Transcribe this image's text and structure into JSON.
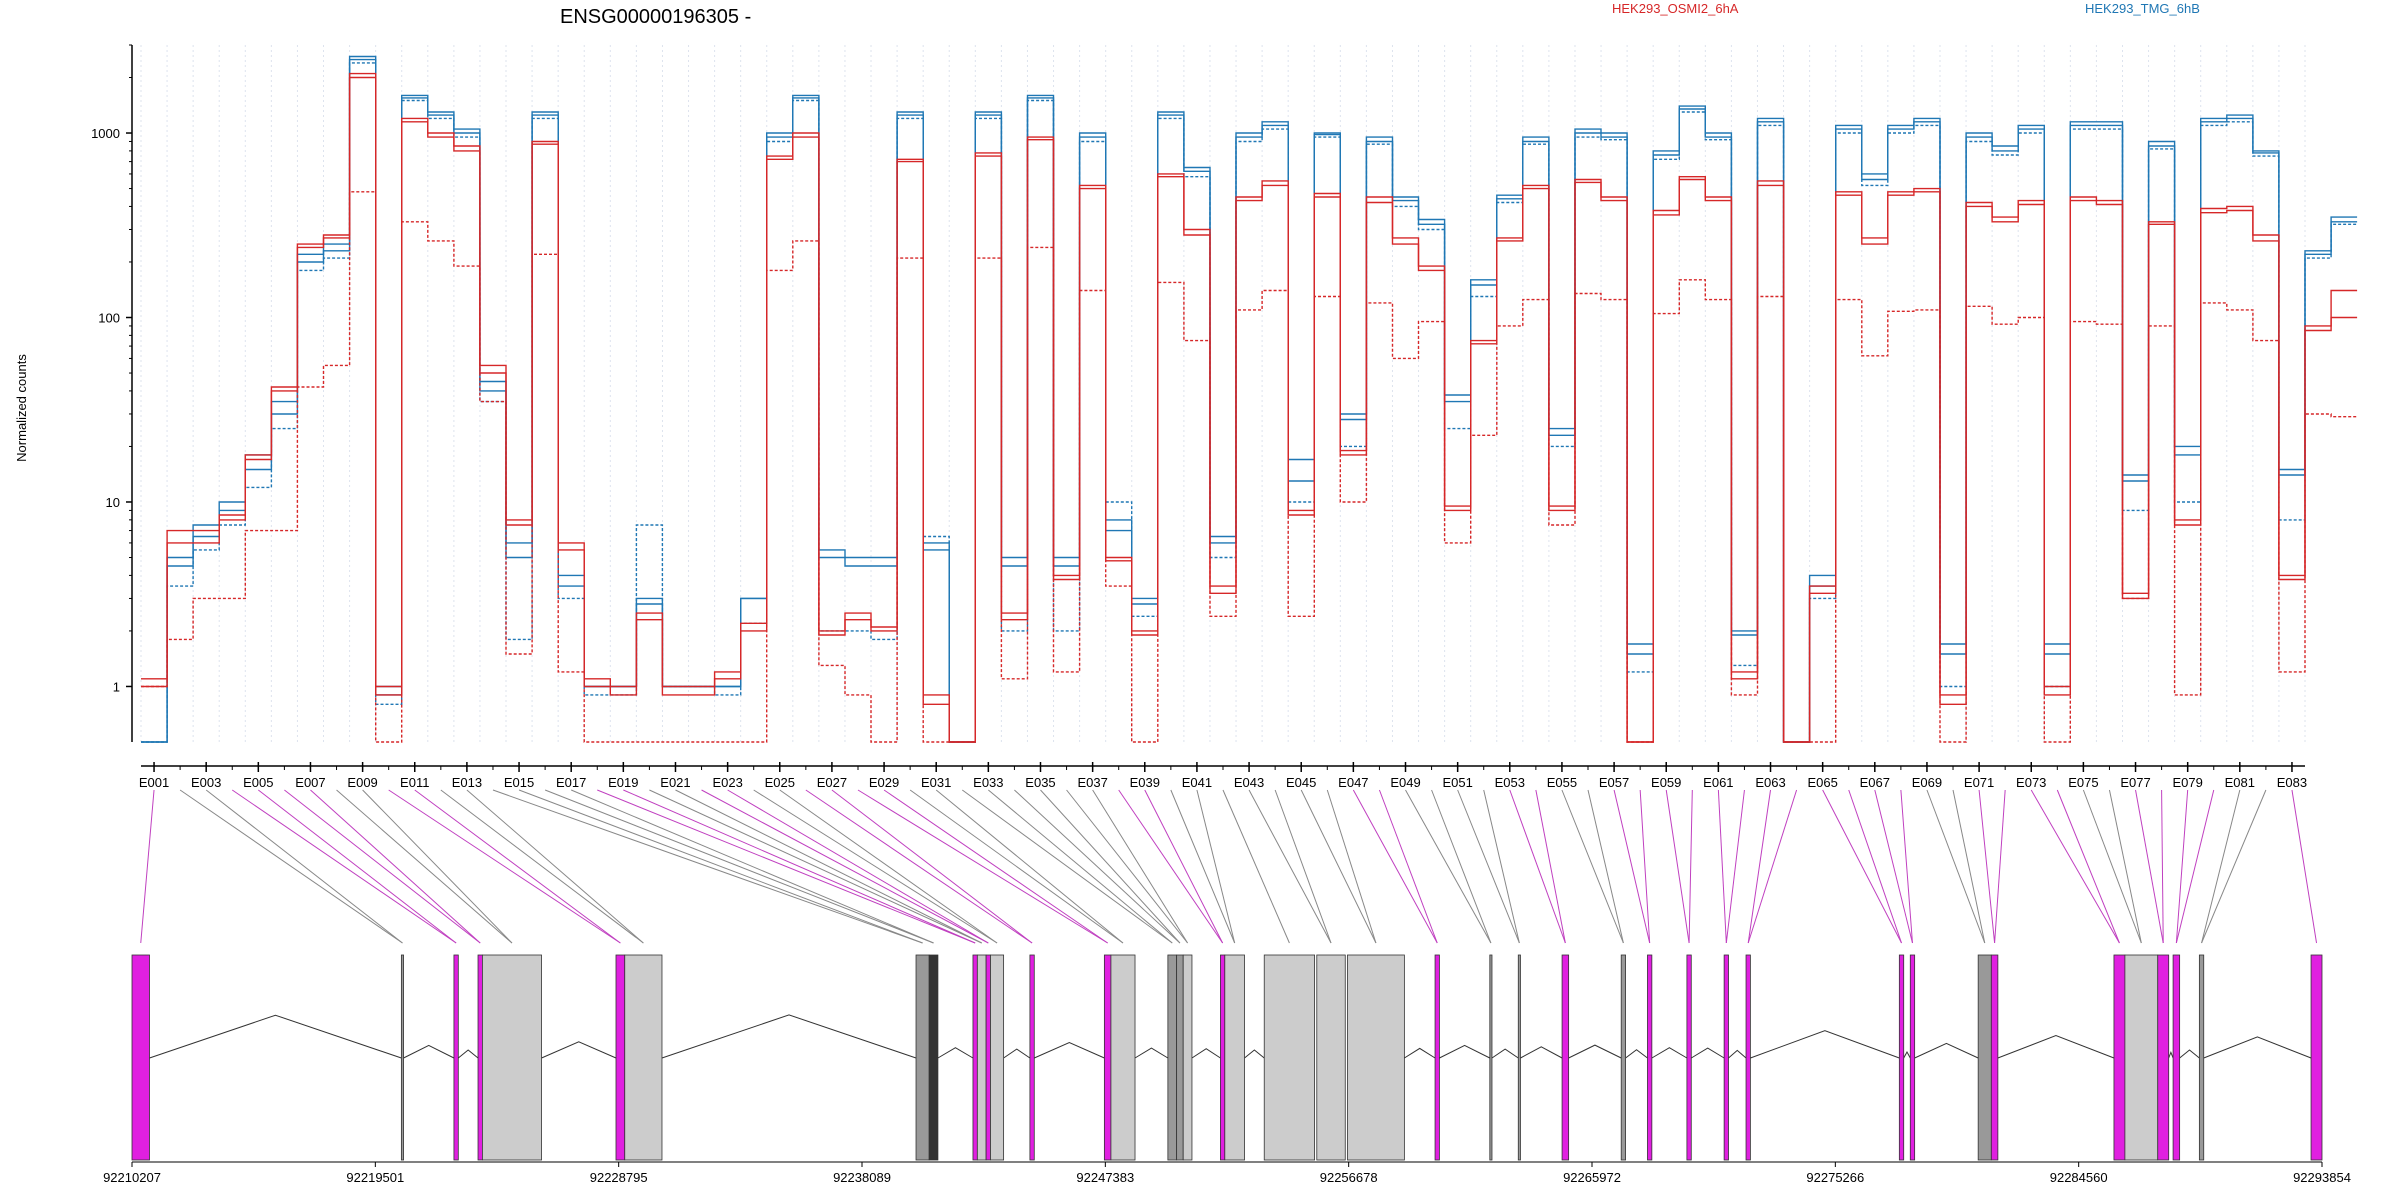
{
  "chart_data": {
    "type": "line",
    "title": "ENSG00000196305 -",
    "ylabel": "Normalized counts",
    "yscale": "log",
    "ylim": [
      0.5,
      3000
    ],
    "y_ticks": [
      1,
      10,
      100,
      1000
    ],
    "y_tick_labels": [
      "1",
      "10",
      "100",
      "1000"
    ],
    "exon_labels": [
      "E001",
      "E003",
      "E005",
      "E007",
      "E009",
      "E011",
      "E013",
      "E015",
      "E017",
      "E019",
      "E021",
      "E023",
      "E025",
      "E027",
      "E029",
      "E031",
      "E033",
      "E035",
      "E037",
      "E039",
      "E041",
      "E043",
      "E045",
      "E047",
      "E049",
      "E051",
      "E053",
      "E055",
      "E057",
      "E059",
      "E061",
      "E063",
      "E065",
      "E067",
      "E069",
      "E071",
      "E073",
      "E075",
      "E077",
      "E079",
      "E081",
      "E083"
    ],
    "exon_count": 83,
    "legend": [
      {
        "name": "HEK293_OSMI2_6hA",
        "color": "#d62728"
      },
      {
        "name": "HEK293_TMG_6hB",
        "color": "#1f77b4"
      }
    ],
    "colors": {
      "red": "#d62728",
      "blue": "#1f77b4",
      "magenta": "#e020e0",
      "gray_exon": "#cccccc"
    },
    "series": [
      {
        "group": "HEK293_TMG_6hB",
        "dashed": false,
        "values": [
          0.5,
          5,
          7.5,
          10,
          18,
          35,
          220,
          250,
          2600,
          1,
          1600,
          1300,
          1050,
          45,
          6,
          1300,
          4,
          1,
          1,
          3,
          1,
          1,
          1,
          3,
          1000,
          1600,
          5.5,
          5,
          5,
          1300,
          6,
          0.5,
          1300,
          5,
          1600,
          5,
          1000,
          8,
          3,
          1300,
          650,
          6.5,
          1000,
          1150,
          17,
          1000,
          30,
          950,
          450,
          340,
          38,
          160,
          460,
          950,
          25,
          1050,
          1000,
          1.7,
          800,
          1400,
          1000,
          2,
          1200,
          0.5,
          4,
          1100,
          600,
          1100,
          1200,
          1.7,
          1000,
          850,
          1100,
          1.7,
          1150,
          1150,
          14,
          900,
          20,
          1200,
          1250,
          800,
          15,
          230,
          350
        ]
      },
      {
        "group": "HEK293_TMG_6hB",
        "dashed": false,
        "values": [
          0.5,
          4.5,
          6.5,
          9,
          15,
          30,
          200,
          230,
          2500,
          0.9,
          1550,
          1250,
          1000,
          40,
          5,
          1250,
          3.5,
          1,
          1,
          2.8,
          1,
          1,
          1,
          3,
          950,
          1550,
          5,
          4.5,
          4.5,
          1250,
          5.5,
          0.5,
          1250,
          4.5,
          1550,
          4.5,
          950,
          7,
          2.8,
          1250,
          620,
          6,
          950,
          1100,
          13,
          980,
          28,
          900,
          430,
          320,
          35,
          150,
          440,
          900,
          23,
          1000,
          950,
          1.5,
          760,
          1350,
          950,
          1.9,
          1150,
          0.5,
          3.5,
          1050,
          560,
          1050,
          1150,
          1.5,
          950,
          800,
          1050,
          1.5,
          1100,
          1100,
          13,
          850,
          18,
          1150,
          1200,
          780,
          14,
          220,
          330
        ]
      },
      {
        "group": "HEK293_TMG_6hB",
        "dashed": true,
        "values": [
          0.5,
          3.5,
          5.5,
          7.5,
          12,
          25,
          180,
          210,
          2400,
          0.8,
          1500,
          1200,
          950,
          35,
          1.8,
          1200,
          3,
          0.9,
          0.9,
          7.5,
          1,
          1,
          0.9,
          2.2,
          900,
          1500,
          2,
          2,
          1.8,
          1200,
          6.5,
          0.5,
          1200,
          2,
          1500,
          2,
          900,
          10,
          2.4,
          1200,
          580,
          5,
          900,
          1050,
          10,
          950,
          20,
          870,
          400,
          300,
          25,
          130,
          420,
          870,
          20,
          950,
          920,
          1.2,
          720,
          1300,
          920,
          1.3,
          1100,
          0.5,
          3,
          1000,
          520,
          1000,
          1100,
          1,
          900,
          760,
          1000,
          1,
          1050,
          1050,
          9,
          820,
          10,
          1100,
          1150,
          750,
          8,
          210,
          320
        ]
      },
      {
        "group": "HEK293_OSMI2_6hA",
        "dashed": false,
        "values": [
          1.1,
          7,
          7,
          8.5,
          18,
          42,
          250,
          280,
          2100,
          1,
          1200,
          1000,
          850,
          55,
          8,
          900,
          6,
          1.1,
          1,
          2.5,
          1,
          1,
          1.2,
          2.2,
          750,
          1000,
          2,
          2.5,
          2.1,
          720,
          0.9,
          0.5,
          780,
          2.5,
          950,
          4,
          520,
          5,
          2,
          600,
          300,
          3.5,
          450,
          550,
          9,
          470,
          19,
          450,
          270,
          190,
          9.5,
          75,
          270,
          520,
          9.5,
          560,
          450,
          0.5,
          380,
          580,
          450,
          1.2,
          550,
          0.5,
          3.5,
          480,
          270,
          480,
          500,
          0.9,
          420,
          350,
          430,
          1,
          450,
          430,
          3.2,
          330,
          8,
          390,
          400,
          280,
          4,
          90,
          140
        ]
      },
      {
        "group": "HEK293_OSMI2_6hA",
        "dashed": false,
        "values": [
          1,
          6,
          6,
          8,
          17,
          40,
          240,
          270,
          2000,
          0.9,
          1150,
          950,
          800,
          50,
          7.5,
          870,
          5.5,
          1,
          0.9,
          2.3,
          0.9,
          0.9,
          1.1,
          2,
          720,
          950,
          1.9,
          2.3,
          2,
          700,
          0.8,
          0.5,
          750,
          2.3,
          920,
          3.8,
          500,
          4.8,
          1.9,
          580,
          280,
          3.2,
          430,
          520,
          8.5,
          450,
          18,
          420,
          250,
          180,
          9,
          72,
          260,
          500,
          9,
          540,
          430,
          0.5,
          360,
          560,
          430,
          1.1,
          520,
          0.5,
          3.2,
          460,
          250,
          460,
          480,
          0.8,
          400,
          330,
          410,
          0.9,
          430,
          410,
          3,
          320,
          7.5,
          370,
          380,
          260,
          3.8,
          85,
          100
        ]
      },
      {
        "group": "HEK293_OSMI2_6hA",
        "dashed": true,
        "values": [
          1,
          1.8,
          3,
          3,
          7,
          7,
          42,
          55,
          480,
          0.5,
          330,
          260,
          190,
          35,
          1.5,
          220,
          1.2,
          0.5,
          0.5,
          0.5,
          0.5,
          0.5,
          0.5,
          0.5,
          180,
          260,
          1.3,
          0.9,
          0.5,
          210,
          0.5,
          0.5,
          210,
          1.1,
          240,
          1.2,
          140,
          3.5,
          0.5,
          155,
          75,
          2.4,
          110,
          140,
          2.4,
          130,
          10,
          120,
          60,
          95,
          6,
          23,
          90,
          125,
          7.5,
          135,
          125,
          0.5,
          105,
          160,
          125,
          0.9,
          130,
          0.5,
          0.5,
          125,
          62,
          108,
          110,
          0.5,
          115,
          92,
          100,
          0.5,
          95,
          92,
          3,
          90,
          0.9,
          120,
          110,
          75,
          1.2,
          30,
          29
        ]
      }
    ],
    "genomic_axis_labels": [
      "92210207",
      "92219501",
      "92228795",
      "92238089",
      "92247383",
      "92256678",
      "92265972",
      "92275266",
      "92284560",
      "92293854"
    ],
    "gene_model": {
      "exons": [
        {
          "s": 0,
          "e": 0.008,
          "c": "m"
        },
        {
          "s": 0.123,
          "e": 0.124,
          "c": "g"
        },
        {
          "s": 0.147,
          "e": 0.149,
          "c": "m"
        },
        {
          "s": 0.158,
          "e": 0.16,
          "c": "m"
        },
        {
          "s": 0.16,
          "e": 0.187,
          "c": "gray"
        },
        {
          "s": 0.221,
          "e": 0.225,
          "c": "m"
        },
        {
          "s": 0.225,
          "e": 0.242,
          "c": "gray"
        },
        {
          "s": 0.358,
          "e": 0.364,
          "c": "g"
        },
        {
          "s": 0.364,
          "e": 0.368,
          "c": "d"
        },
        {
          "s": 0.384,
          "e": 0.386,
          "c": "m"
        },
        {
          "s": 0.386,
          "e": 0.39,
          "c": "gray"
        },
        {
          "s": 0.39,
          "e": 0.392,
          "c": "m"
        },
        {
          "s": 0.392,
          "e": 0.398,
          "c": "gray"
        },
        {
          "s": 0.41,
          "e": 0.412,
          "c": "m"
        },
        {
          "s": 0.444,
          "e": 0.447,
          "c": "m"
        },
        {
          "s": 0.447,
          "e": 0.458,
          "c": "gray"
        },
        {
          "s": 0.473,
          "e": 0.477,
          "c": "g"
        },
        {
          "s": 0.477,
          "e": 0.48,
          "c": "g"
        },
        {
          "s": 0.48,
          "e": 0.484,
          "c": "gray"
        },
        {
          "s": 0.497,
          "e": 0.499,
          "c": "m"
        },
        {
          "s": 0.499,
          "e": 0.508,
          "c": "gray"
        },
        {
          "s": 0.517,
          "e": 0.54,
          "c": "gray"
        },
        {
          "s": 0.541,
          "e": 0.554,
          "c": "gray"
        },
        {
          "s": 0.555,
          "e": 0.581,
          "c": "gray"
        },
        {
          "s": 0.595,
          "e": 0.597,
          "c": "m"
        },
        {
          "s": 0.62,
          "e": 0.621,
          "c": "g"
        },
        {
          "s": 0.633,
          "e": 0.634,
          "c": "g"
        },
        {
          "s": 0.653,
          "e": 0.656,
          "c": "m"
        },
        {
          "s": 0.68,
          "e": 0.682,
          "c": "g"
        },
        {
          "s": 0.692,
          "e": 0.694,
          "c": "m"
        },
        {
          "s": 0.71,
          "e": 0.712,
          "c": "m"
        },
        {
          "s": 0.727,
          "e": 0.729,
          "c": "m"
        },
        {
          "s": 0.737,
          "e": 0.739,
          "c": "m"
        },
        {
          "s": 0.807,
          "e": 0.809,
          "c": "m"
        },
        {
          "s": 0.812,
          "e": 0.814,
          "c": "m"
        },
        {
          "s": 0.843,
          "e": 0.849,
          "c": "g"
        },
        {
          "s": 0.849,
          "e": 0.852,
          "c": "m"
        },
        {
          "s": 0.905,
          "e": 0.91,
          "c": "m"
        },
        {
          "s": 0.91,
          "e": 0.925,
          "c": "gray"
        },
        {
          "s": 0.925,
          "e": 0.93,
          "c": "m"
        },
        {
          "s": 0.932,
          "e": 0.935,
          "c": "m"
        },
        {
          "s": 0.944,
          "e": 0.946,
          "c": "g"
        },
        {
          "s": 0.995,
          "e": 1.0,
          "c": "m"
        }
      ]
    }
  }
}
